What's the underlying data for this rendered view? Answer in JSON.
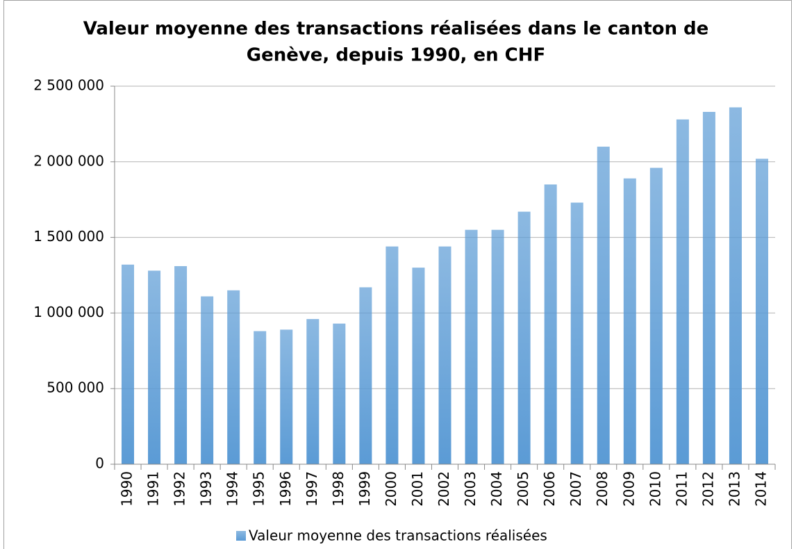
{
  "chart_data": {
    "type": "bar",
    "title": [
      "Valeur moyenne des transactions réalisées dans le canton de",
      "Genève, depuis 1990, en CHF"
    ],
    "categories": [
      "1990",
      "1991",
      "1992",
      "1993",
      "1994",
      "1995",
      "1996",
      "1997",
      "1998",
      "1999",
      "2000",
      "2001",
      "2002",
      "2003",
      "2004",
      "2005",
      "2006",
      "2007",
      "2008",
      "2009",
      "2010",
      "2011",
      "2012",
      "2013",
      "2014"
    ],
    "series": [
      {
        "name": "Valeur moyenne des transactions réalisées",
        "color": "#5b9bd5",
        "values": [
          1320000,
          1280000,
          1310000,
          1110000,
          1150000,
          880000,
          890000,
          960000,
          930000,
          1170000,
          1440000,
          1300000,
          1440000,
          1550000,
          1550000,
          1670000,
          1850000,
          1730000,
          2100000,
          1890000,
          1960000,
          2280000,
          2330000,
          2360000,
          2020000
        ]
      }
    ],
    "ylim": [
      0,
      2500000
    ],
    "yticks": [
      0,
      {
        "value": 500000,
        "label": "500 000"
      },
      {
        "value": 1000000,
        "label": "1 000 000"
      },
      {
        "value": 1500000,
        "label": "1 500 000"
      },
      {
        "value": 2000000,
        "label": "2 000 000"
      },
      {
        "value": 2500000,
        "label": "2 500 000"
      }
    ],
    "grid": true,
    "legend": "bottom"
  }
}
